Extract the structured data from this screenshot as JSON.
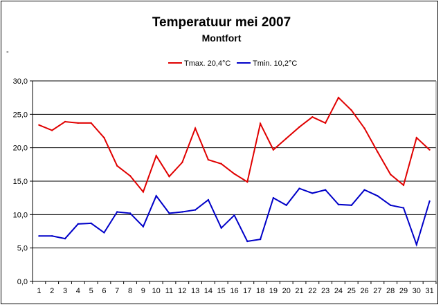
{
  "chart_data": {
    "type": "line",
    "title": "Temperatuur mei 2007",
    "subtitle": "Montfort",
    "stray_mark": "-",
    "xlabel": "",
    "ylabel": "",
    "ylim": [
      0,
      30
    ],
    "y_ticks": [
      "0,0",
      "5,0",
      "10,0",
      "15,0",
      "20,0",
      "25,0",
      "30,0"
    ],
    "grid": true,
    "legend_position": "top-center",
    "categories": [
      "1",
      "2",
      "3",
      "4",
      "5",
      "6",
      "7",
      "8",
      "9",
      "10",
      "11",
      "12",
      "13",
      "14",
      "15",
      "16",
      "17",
      "18",
      "19",
      "20",
      "21",
      "22",
      "23",
      "24",
      "25",
      "26",
      "27",
      "28",
      "29",
      "30",
      "31"
    ],
    "series": [
      {
        "name": "Tmax. 20,4°C",
        "color": "#e00000",
        "values": [
          23.4,
          22.6,
          23.9,
          23.7,
          23.7,
          21.5,
          17.3,
          15.8,
          13.4,
          18.8,
          15.7,
          17.8,
          22.9,
          18.2,
          17.6,
          16.1,
          14.9,
          23.6,
          19.7,
          21.4,
          23.1,
          24.6,
          23.7,
          27.5,
          25.6,
          22.9,
          19.4,
          16.0,
          14.4,
          21.5,
          19.7
        ]
      },
      {
        "name": "Tmin. 10,2°C",
        "color": "#0000c8",
        "values": [
          6.8,
          6.8,
          6.4,
          8.6,
          8.7,
          7.3,
          10.4,
          10.2,
          8.2,
          12.8,
          10.2,
          10.4,
          10.7,
          12.2,
          8.0,
          9.9,
          6.0,
          6.3,
          12.5,
          11.4,
          13.9,
          13.2,
          13.7,
          11.5,
          11.4,
          13.7,
          12.8,
          11.4,
          11.0,
          5.5,
          12.0
        ]
      }
    ]
  }
}
